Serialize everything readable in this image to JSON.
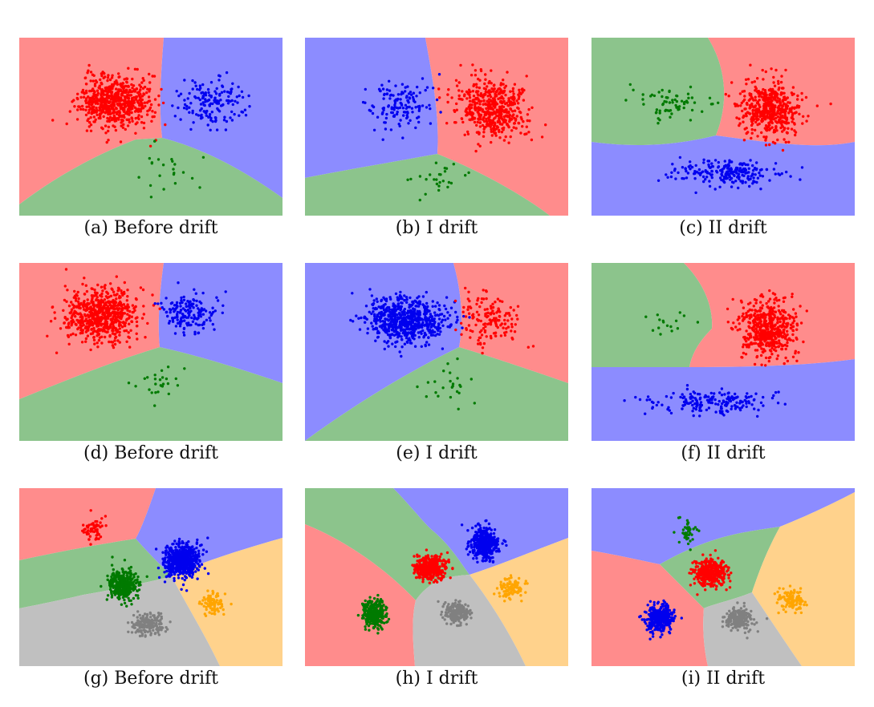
{
  "colors": {
    "red_region": "#ff8c8c",
    "blue_region": "#8c8cff",
    "green_region": "#8cc48c",
    "orange_region": "#ffd28c",
    "gray_region": "#c0c0c0",
    "red_points": "#ff0000",
    "blue_points": "#0000ee",
    "green_points": "#007a00",
    "orange_points": "#ffa500",
    "gray_points": "#808080"
  },
  "panels": [
    {
      "caption": "(a) Before drift",
      "regions": [
        "red",
        "blue",
        "green"
      ],
      "points": [
        "red",
        "blue",
        "green"
      ]
    },
    {
      "caption": "(b) I drift",
      "regions": [
        "blue",
        "red",
        "green"
      ],
      "points": [
        "blue",
        "red",
        "green"
      ]
    },
    {
      "caption": "(c) II drift",
      "regions": [
        "green",
        "red",
        "blue"
      ],
      "points": [
        "green",
        "red",
        "blue"
      ]
    },
    {
      "caption": "(d) Before drift",
      "regions": [
        "red",
        "blue",
        "green"
      ],
      "points": [
        "red",
        "blue",
        "green"
      ]
    },
    {
      "caption": "(e) I drift",
      "regions": [
        "blue",
        "red",
        "green"
      ],
      "points": [
        "blue",
        "red",
        "green"
      ]
    },
    {
      "caption": "(f) II drift",
      "regions": [
        "green",
        "red",
        "blue"
      ],
      "points": [
        "green",
        "red",
        "blue"
      ]
    },
    {
      "caption": "(g) Before drift",
      "regions": [
        "red",
        "blue",
        "green",
        "orange",
        "gray"
      ],
      "points": [
        "red",
        "blue",
        "green",
        "orange",
        "gray"
      ]
    },
    {
      "caption": "(h) I drift",
      "regions": [
        "green",
        "blue",
        "red",
        "orange",
        "gray"
      ],
      "points": [
        "green",
        "blue",
        "red",
        "orange",
        "gray"
      ]
    },
    {
      "caption": "(i) II drift",
      "regions": [
        "blue",
        "green",
        "red",
        "orange",
        "gray"
      ],
      "points": [
        "blue",
        "green",
        "red",
        "orange",
        "gray"
      ]
    }
  ]
}
